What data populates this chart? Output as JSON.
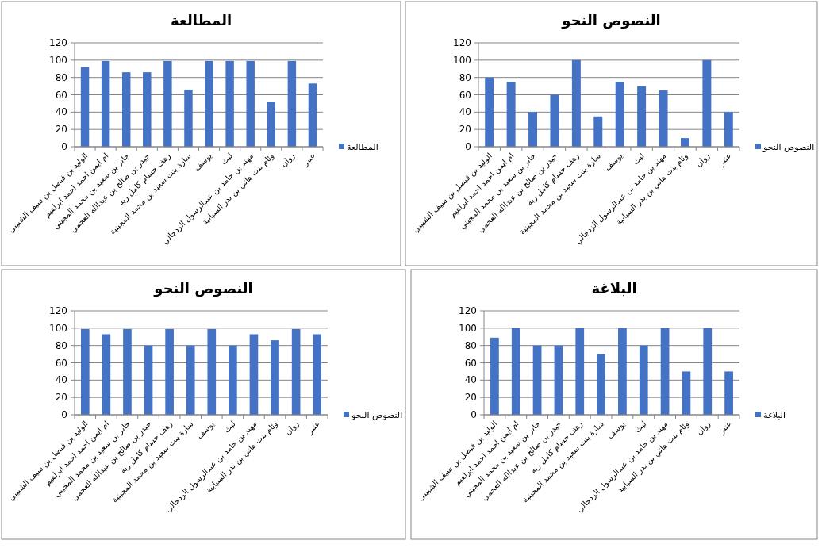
{
  "chart_data": [
    {
      "type": "bar",
      "title": "المطالعة",
      "categories": [
        "الوليد بن فيصل بن سيف الشبيبي",
        "ام ايمن احمد احمد ابراهيم",
        "جابر بن سعيد بن محمد المجيني",
        "حيدر بن صالح  بن عبدالله العجمي",
        "رهف حسام كامل ربه",
        "سارة بنت سعيد بن محمد المجينية",
        "يوسف",
        "ليث",
        "مهند بن حامد بن عبدالرسول الزدجالي",
        "وئام بنت هاني بن بدر  السيابية",
        "روان",
        "عنبر"
      ],
      "series": [
        {
          "name": "المطالعة",
          "color": "#4472c4",
          "values": [
            92,
            99,
            86,
            86,
            99,
            66,
            99,
            99,
            99,
            52,
            99,
            73
          ]
        }
      ],
      "ylim": [
        0,
        120
      ],
      "yticks": [
        0,
        20,
        40,
        60,
        80,
        100,
        120
      ],
      "grid": "y",
      "legend": "right"
    },
    {
      "type": "bar",
      "title": "النصوص النحو",
      "categories": [
        "الوليد بن فيصل بن سيف الشبيبي",
        "ام ايمن احمد احمد ابراهيم",
        "جابر بن سعيد بن محمد المجيني",
        "حيدر بن صالح  بن عبدالله العجمي",
        "رهف حسام كامل ربه",
        "سارة بنت سعيد بن محمد المجينية",
        "يوسف",
        "ليث",
        "مهند بن حامد بن عبدالرسول الزدجالي",
        "وئام بنت هاني بن بدر  السيابية",
        "روان",
        "عنبر"
      ],
      "series": [
        {
          "name": "النصوص النحو",
          "color": "#4472c4",
          "values": [
            80,
            75,
            40,
            60,
            100,
            35,
            75,
            70,
            65,
            10,
            100,
            40
          ]
        }
      ],
      "ylim": [
        0,
        120
      ],
      "yticks": [
        0,
        20,
        40,
        60,
        80,
        100,
        120
      ],
      "grid": "y",
      "legend": "right"
    },
    {
      "type": "bar",
      "title": "النصوص النحو",
      "categories": [
        "الوليد بن فيصل بن سيف الشبيبي",
        "ام ايمن احمد احمد ابراهيم",
        "جابر بن سعيد بن محمد المجيني",
        "حيدر بن صالح  بن عبدالله العجمي",
        "رهف حسام كامل ربه",
        "سارة بنت سعيد بن محمد المجينية",
        "يوسف",
        "ليث",
        "مهند بن حامد بن عبدالرسول الزدجالي",
        "وئام بنت هاني بن بدر  السيابية",
        "روان",
        "عنبر"
      ],
      "series": [
        {
          "name": "النصوص النحو",
          "color": "#4472c4",
          "values": [
            99,
            93,
            99,
            80,
            99,
            80,
            99,
            80,
            93,
            86,
            99,
            93
          ]
        }
      ],
      "ylim": [
        0,
        120
      ],
      "yticks": [
        0,
        20,
        40,
        60,
        80,
        100,
        120
      ],
      "grid": "y",
      "legend": "right"
    },
    {
      "type": "bar",
      "title": "البلاغة",
      "categories": [
        "الوليد بن فيصل بن سيف الشبيبي",
        "ام ايمن احمد احمد ابراهيم",
        "جابر بن سعيد بن محمد المجيني",
        "حيدر بن صالح  بن عبدالله العجمي",
        "رهف حسام كامل ربه",
        "سارة بنت سعيد بن محمد المجينية",
        "يوسف",
        "ليث",
        "مهند بن حامد بن عبدالرسول الزدجالي",
        "وئام بنت هاني بن بدر  السيابية",
        "روان",
        "عنبر"
      ],
      "series": [
        {
          "name": "البلاغة",
          "color": "#4472c4",
          "values": [
            89,
            100,
            80,
            80,
            100,
            70,
            100,
            80,
            100,
            50,
            100,
            50
          ]
        }
      ],
      "ylim": [
        0,
        120
      ],
      "yticks": [
        0,
        20,
        40,
        60,
        80,
        100,
        120
      ],
      "grid": "y",
      "legend": "right"
    }
  ]
}
